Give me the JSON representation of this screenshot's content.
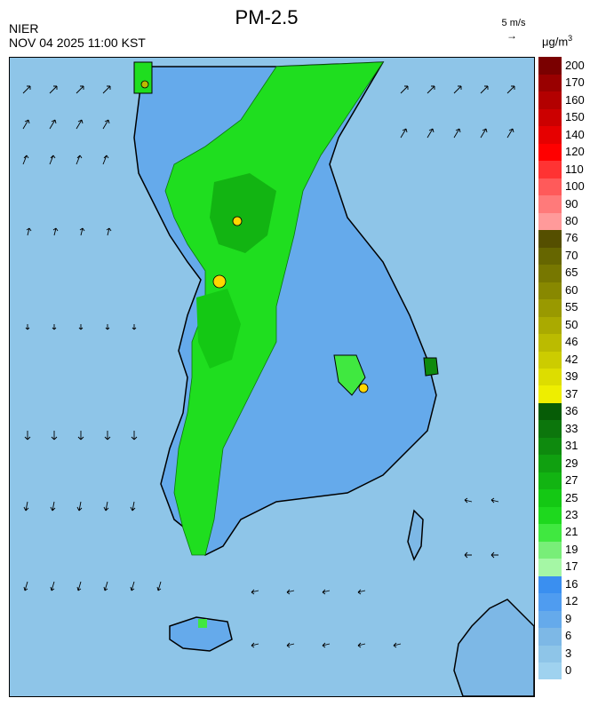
{
  "header": {
    "organization": "NIER",
    "timestamp": "NOV 04 2025 11:00 KST",
    "title": "PM-2.5",
    "wind_reference": "5 m/s",
    "unit": "μg/m",
    "unit_exponent": "3"
  },
  "legend": {
    "labels": [
      "0",
      "3",
      "6",
      "9",
      "12",
      "16",
      "17",
      "19",
      "21",
      "23",
      "25",
      "27",
      "29",
      "31",
      "33",
      "36",
      "37",
      "39",
      "42",
      "46",
      "50",
      "55",
      "60",
      "65",
      "70",
      "76",
      "80",
      "90",
      "100",
      "110",
      "120",
      "140",
      "150",
      "160",
      "170",
      "200"
    ],
    "colors": [
      "#9fd2ef",
      "#8ec5e8",
      "#7db8e6",
      "#65aaeb",
      "#4f9cf0",
      "#3a8ff0",
      "#a5f7a5",
      "#78ee78",
      "#40e840",
      "#1ed81e",
      "#14c814",
      "#12b412",
      "#10a010",
      "#0e8a0e",
      "#0c760c",
      "#065c06",
      "#eeee00",
      "#dddd00",
      "#cccc00",
      "#bbbb00",
      "#aaaa00",
      "#999900",
      "#888800",
      "#777700",
      "#666600",
      "#554f00",
      "#ff9a9a",
      "#ff7a7a",
      "#ff5a5a",
      "#ff3333",
      "#ff0000",
      "#e60000",
      "#cc0000",
      "#b30000",
      "#990000",
      "#7a0000"
    ]
  },
  "map": {
    "sea_color": "#8ec5e8",
    "land_low_color": "#65aaeb",
    "land_high_color": "#1fde1f",
    "hotspot_color": "#ffd700"
  }
}
